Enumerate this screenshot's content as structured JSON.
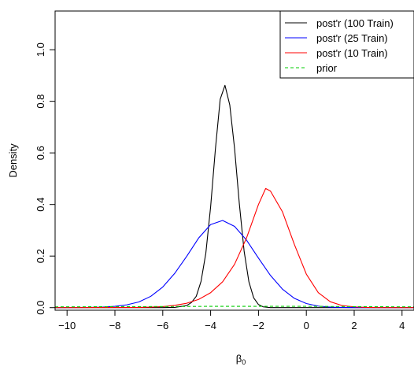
{
  "chart_data": {
    "type": "line",
    "title": "",
    "xlabel": "β",
    "xlabel_sub": "0",
    "ylabel": "Density",
    "xlim": [
      -10.5,
      4.5
    ],
    "ylim": [
      -0.01,
      1.15
    ],
    "xticks": [
      -10,
      -8,
      -6,
      -4,
      -2,
      0,
      2,
      4
    ],
    "xtick_labels": [
      "−10",
      "−8",
      "−6",
      "−4",
      "−2",
      "0",
      "2",
      "4"
    ],
    "yticks": [
      0.0,
      0.2,
      0.4,
      0.6,
      0.8,
      1.0
    ],
    "ytick_labels": [
      "0.0",
      "0.2",
      "0.4",
      "0.6",
      "0.8",
      "1.0"
    ],
    "legend_position": "top-right",
    "series": [
      {
        "name": "post'r (100 Train)",
        "color": "#000000",
        "dash": "solid",
        "x": [
          -10.5,
          -6.0,
          -5.5,
          -5.0,
          -4.8,
          -4.6,
          -4.4,
          -4.2,
          -4.0,
          -3.8,
          -3.6,
          -3.4,
          -3.2,
          -3.0,
          -2.8,
          -2.6,
          -2.4,
          -2.2,
          -2.0,
          -1.8,
          -1.5,
          4.5
        ],
        "y": [
          0.0,
          0.0,
          0.001,
          0.008,
          0.02,
          0.044,
          0.102,
          0.211,
          0.391,
          0.615,
          0.808,
          0.862,
          0.786,
          0.618,
          0.403,
          0.219,
          0.1,
          0.038,
          0.012,
          0.003,
          0.0,
          0.0
        ]
      },
      {
        "name": "post'r (25 Train)",
        "color": "#0000ff",
        "dash": "solid",
        "x": [
          -10.5,
          -9.0,
          -8.5,
          -8.0,
          -7.5,
          -7.0,
          -6.5,
          -6.0,
          -5.5,
          -5.0,
          -4.5,
          -4.0,
          -3.5,
          -3.0,
          -2.5,
          -2.0,
          -1.5,
          -1.0,
          -0.5,
          0.0,
          0.5,
          1.0,
          1.5,
          2.0,
          4.5
        ],
        "y": [
          0.0,
          0.001,
          0.002,
          0.005,
          0.011,
          0.022,
          0.044,
          0.08,
          0.133,
          0.199,
          0.27,
          0.322,
          0.338,
          0.315,
          0.262,
          0.192,
          0.125,
          0.072,
          0.036,
          0.016,
          0.006,
          0.002,
          0.001,
          0.0,
          0.0
        ]
      },
      {
        "name": "post'r (10 Train)",
        "color": "#ff0000",
        "dash": "solid",
        "x": [
          -10.5,
          -7.0,
          -6.5,
          -6.0,
          -5.5,
          -5.0,
          -4.5,
          -4.0,
          -3.5,
          -3.0,
          -2.5,
          -2.0,
          -1.7,
          -1.5,
          -1.0,
          -0.5,
          0.0,
          0.5,
          1.0,
          1.5,
          2.0,
          2.5,
          3.0,
          4.5
        ],
        "y": [
          0.0,
          0.001,
          0.002,
          0.004,
          0.009,
          0.017,
          0.032,
          0.058,
          0.1,
          0.168,
          0.27,
          0.4,
          0.462,
          0.452,
          0.372,
          0.245,
          0.13,
          0.058,
          0.023,
          0.008,
          0.003,
          0.001,
          0.0,
          0.0
        ]
      },
      {
        "name": "prior",
        "color": "#00cc00",
        "dash": "dashed",
        "x": [
          -10.5,
          -7.0,
          -4.0,
          -2.0,
          0.0,
          2.0,
          4.5
        ],
        "y": [
          0.003,
          0.004,
          0.005,
          0.005,
          0.005,
          0.004,
          0.003
        ]
      }
    ]
  }
}
